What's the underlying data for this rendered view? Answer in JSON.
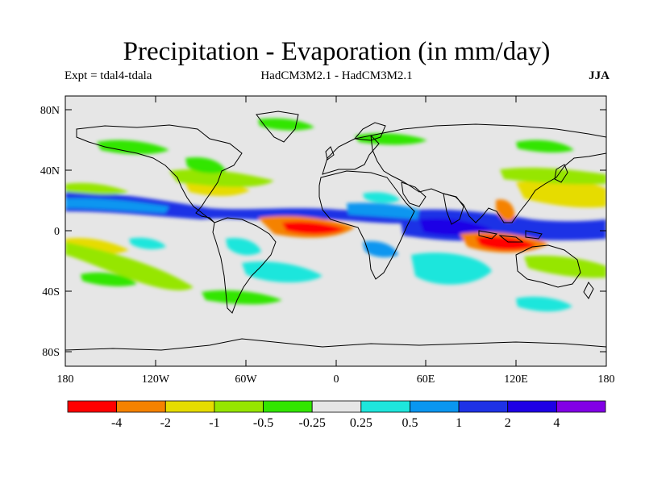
{
  "header": {
    "title": "Precipitation - Evaporation (in mm/day)",
    "expt_label": "Expt = tdal4-tdala",
    "model_label": "HadCM3M2.1 - HadCM3M2.1",
    "season_label": "JJA"
  },
  "map": {
    "lat_labels": [
      "80N",
      "40N",
      "0",
      "40S",
      "80S"
    ],
    "lon_labels": [
      "180",
      "120W",
      "60W",
      "0",
      "60E",
      "120E",
      "180"
    ],
    "background_color": "#e6e6e6",
    "coastline_color": "#000000"
  },
  "colorbar": {
    "colors": [
      "#ff0000",
      "#f58200",
      "#e6dc00",
      "#96e600",
      "#32e600",
      "#e6e6e6",
      "#1ee6dc",
      "#0a96f0",
      "#1e32e6",
      "#1e00e6",
      "#8200e6"
    ],
    "labels": [
      "-4",
      "-2",
      "-1",
      "-0.5",
      "-0.25",
      "0.25",
      "0.5",
      "1",
      "2",
      "4"
    ]
  }
}
